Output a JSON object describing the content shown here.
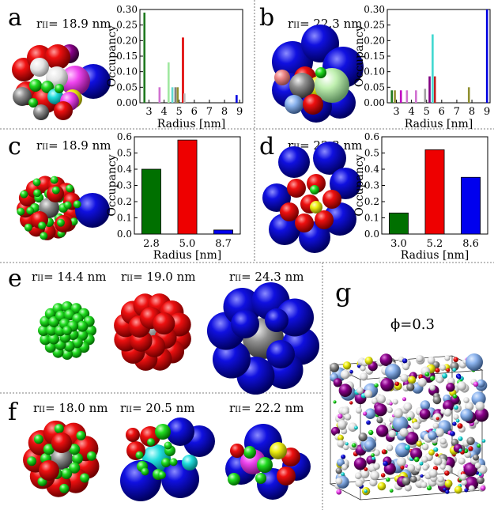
{
  "panels": {
    "a": {
      "label": "a",
      "radius_label": "18.9 nm"
    },
    "b": {
      "label": "b",
      "radius_label": "22.3 nm"
    },
    "c": {
      "label": "c",
      "radius_label": "18.9 nm"
    },
    "d": {
      "label": "d",
      "radius_label": "22.3 nm"
    },
    "e": {
      "label": "e",
      "radius_labels": [
        "14.4 nm",
        "19.0 nm",
        "24.3 nm"
      ]
    },
    "f": {
      "label": "f",
      "radius_labels": [
        "18.0 nm",
        "20.5 nm",
        "22.2 nm"
      ]
    },
    "g": {
      "label": "g",
      "phi_label": "ϕ=0.3"
    }
  },
  "radius_symbol": "r",
  "radius_subscript": "II",
  "radius_eq": "= ",
  "chart_data": [
    {
      "id": "a",
      "type": "bar",
      "xlabel": "Radius [nm]",
      "ylabel": "Occupancy",
      "xlim": [
        2.4,
        9.2
      ],
      "ylim": [
        0,
        0.3
      ],
      "xticks": [
        3,
        4,
        5,
        6,
        7,
        8,
        9
      ],
      "xtick_labels": [
        "3",
        "4",
        "5",
        "6",
        "7",
        "8",
        "9"
      ],
      "yticks": [
        0,
        0.05,
        0.1,
        0.15,
        0.2,
        0.25,
        0.3
      ],
      "ytick_labels": [
        "0.00",
        "0.05",
        "0.10",
        "0.15",
        "0.20",
        "0.25",
        "0.30"
      ],
      "bars": [
        {
          "x": 2.7,
          "value": 0.29,
          "color": "#207a20"
        },
        {
          "x": 3.7,
          "value": 0.05,
          "color": "#d070d0"
        },
        {
          "x": 4.3,
          "value": 0.13,
          "color": "#a0e8a0"
        },
        {
          "x": 4.55,
          "value": 0.05,
          "color": "#60d8d0"
        },
        {
          "x": 4.75,
          "value": 0.05,
          "color": "#808080"
        },
        {
          "x": 4.9,
          "value": 0.05,
          "color": "#909030"
        },
        {
          "x": 5.25,
          "value": 0.21,
          "color": "#e00000"
        },
        {
          "x": 5.35,
          "value": 0.03,
          "color": "#c0c0c0"
        },
        {
          "x": 8.8,
          "value": 0.025,
          "color": "#0000e0"
        }
      ]
    },
    {
      "id": "b",
      "type": "bar",
      "xlabel": "Radius [nm]",
      "ylabel": "Occupancy",
      "xlim": [
        2.4,
        9.2
      ],
      "ylim": [
        0,
        0.3
      ],
      "xticks": [
        3,
        4,
        5,
        6,
        7,
        8,
        9
      ],
      "xtick_labels": [
        "3",
        "4",
        "5",
        "6",
        "7",
        "8",
        "9"
      ],
      "yticks": [
        0,
        0.05,
        0.1,
        0.15,
        0.2,
        0.25,
        0.3
      ],
      "ytick_labels": [
        "0.00",
        "0.05",
        "0.10",
        "0.15",
        "0.20",
        "0.25",
        "0.30"
      ],
      "bars": [
        {
          "x": 2.7,
          "value": 0.04,
          "color": "#207a20"
        },
        {
          "x": 2.9,
          "value": 0.04,
          "color": "#909030"
        },
        {
          "x": 3.3,
          "value": 0.04,
          "color": "#c000c0"
        },
        {
          "x": 3.7,
          "value": 0.04,
          "color": "#d070d0"
        },
        {
          "x": 4.3,
          "value": 0.04,
          "color": "#d070d0"
        },
        {
          "x": 4.9,
          "value": 0.045,
          "color": "#a0a0a0"
        },
        {
          "x": 5.2,
          "value": 0.085,
          "color": "#800080"
        },
        {
          "x": 5.4,
          "value": 0.22,
          "color": "#40d8d0"
        },
        {
          "x": 5.55,
          "value": 0.085,
          "color": "#c02020"
        },
        {
          "x": 7.8,
          "value": 0.05,
          "color": "#909030"
        },
        {
          "x": 9.0,
          "value": 0.3,
          "color": "#0000e0"
        }
      ]
    },
    {
      "id": "c",
      "type": "bar",
      "xlabel": "Radius [nm]",
      "ylabel": "Occupancy",
      "categories": [
        "2.8",
        "5.0",
        "8.7"
      ],
      "values": [
        0.4,
        0.58,
        0.025
      ],
      "colors": [
        "#007000",
        "#ee0000",
        "#0000ee"
      ],
      "ylim": [
        0,
        0.6
      ],
      "yticks": [
        0,
        0.1,
        0.2,
        0.3,
        0.4,
        0.5,
        0.6
      ],
      "ytick_labels": [
        "0.0",
        "0.1",
        "0.2",
        "0.3",
        "0.4",
        "0.5",
        "0.6"
      ]
    },
    {
      "id": "d",
      "type": "bar",
      "xlabel": "Radius [nm]",
      "ylabel": "Occupancy",
      "categories": [
        "3.0",
        "5.2",
        "8.6"
      ],
      "values": [
        0.13,
        0.52,
        0.35
      ],
      "colors": [
        "#007000",
        "#ee0000",
        "#0000ee"
      ],
      "ylim": [
        0,
        0.6
      ],
      "yticks": [
        0,
        0.1,
        0.2,
        0.3,
        0.4,
        0.5,
        0.6
      ],
      "ytick_labels": [
        "0.0",
        "0.1",
        "0.2",
        "0.3",
        "0.4",
        "0.5",
        "0.6"
      ]
    }
  ]
}
